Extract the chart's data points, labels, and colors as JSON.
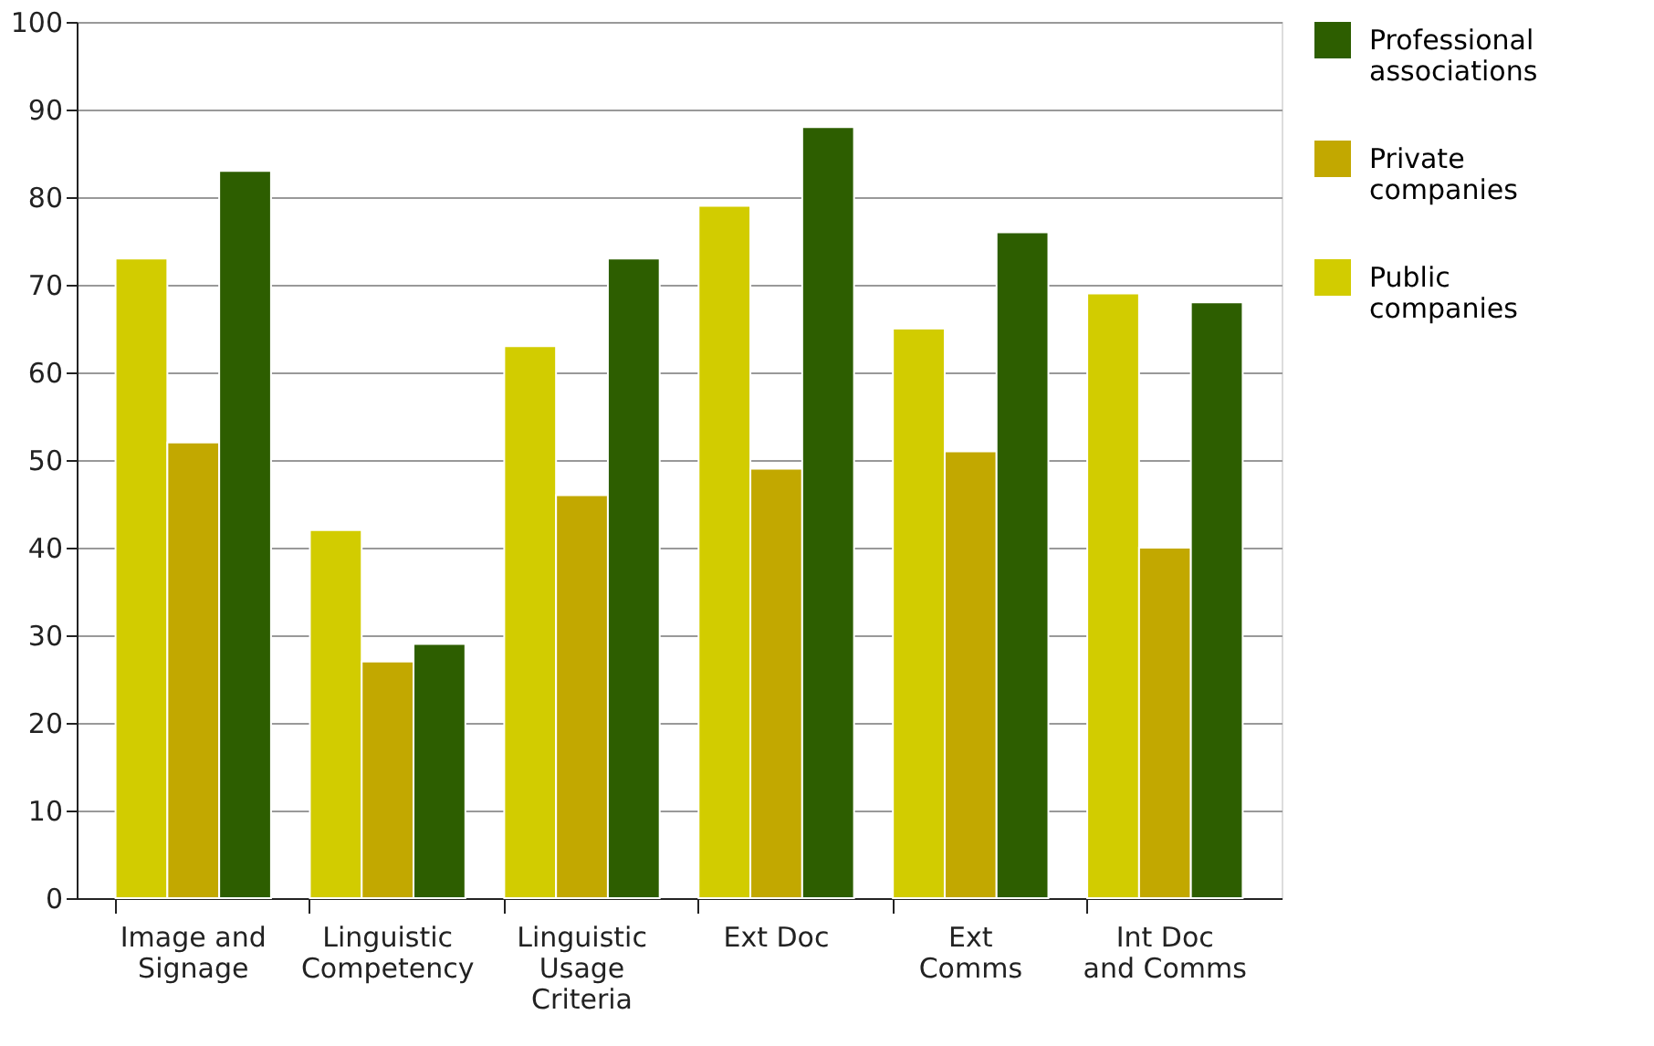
{
  "chart_data": {
    "type": "bar",
    "categories": [
      "Image and\nSignage",
      "Linguistic\nCompetency",
      "Linguistic\nUsage\nCriteria",
      "Ext Doc",
      "Ext\nComms",
      "Int Doc\nand Comms"
    ],
    "series": [
      {
        "name": "Public companies",
        "color": "#d2cc00",
        "values": [
          73,
          42,
          63,
          79,
          65,
          69
        ]
      },
      {
        "name": "Private companies",
        "color": "#c2a800",
        "values": [
          52,
          27,
          46,
          49,
          51,
          40
        ]
      },
      {
        "name": "Professional associations",
        "color": "#2d5e00",
        "values": [
          83,
          29,
          73,
          88,
          76,
          68
        ]
      }
    ],
    "ylim": [
      0,
      100
    ],
    "yticks": [
      0,
      10,
      20,
      30,
      40,
      50,
      60,
      70,
      80,
      90,
      100
    ],
    "grid": "y",
    "legend": "top right"
  }
}
